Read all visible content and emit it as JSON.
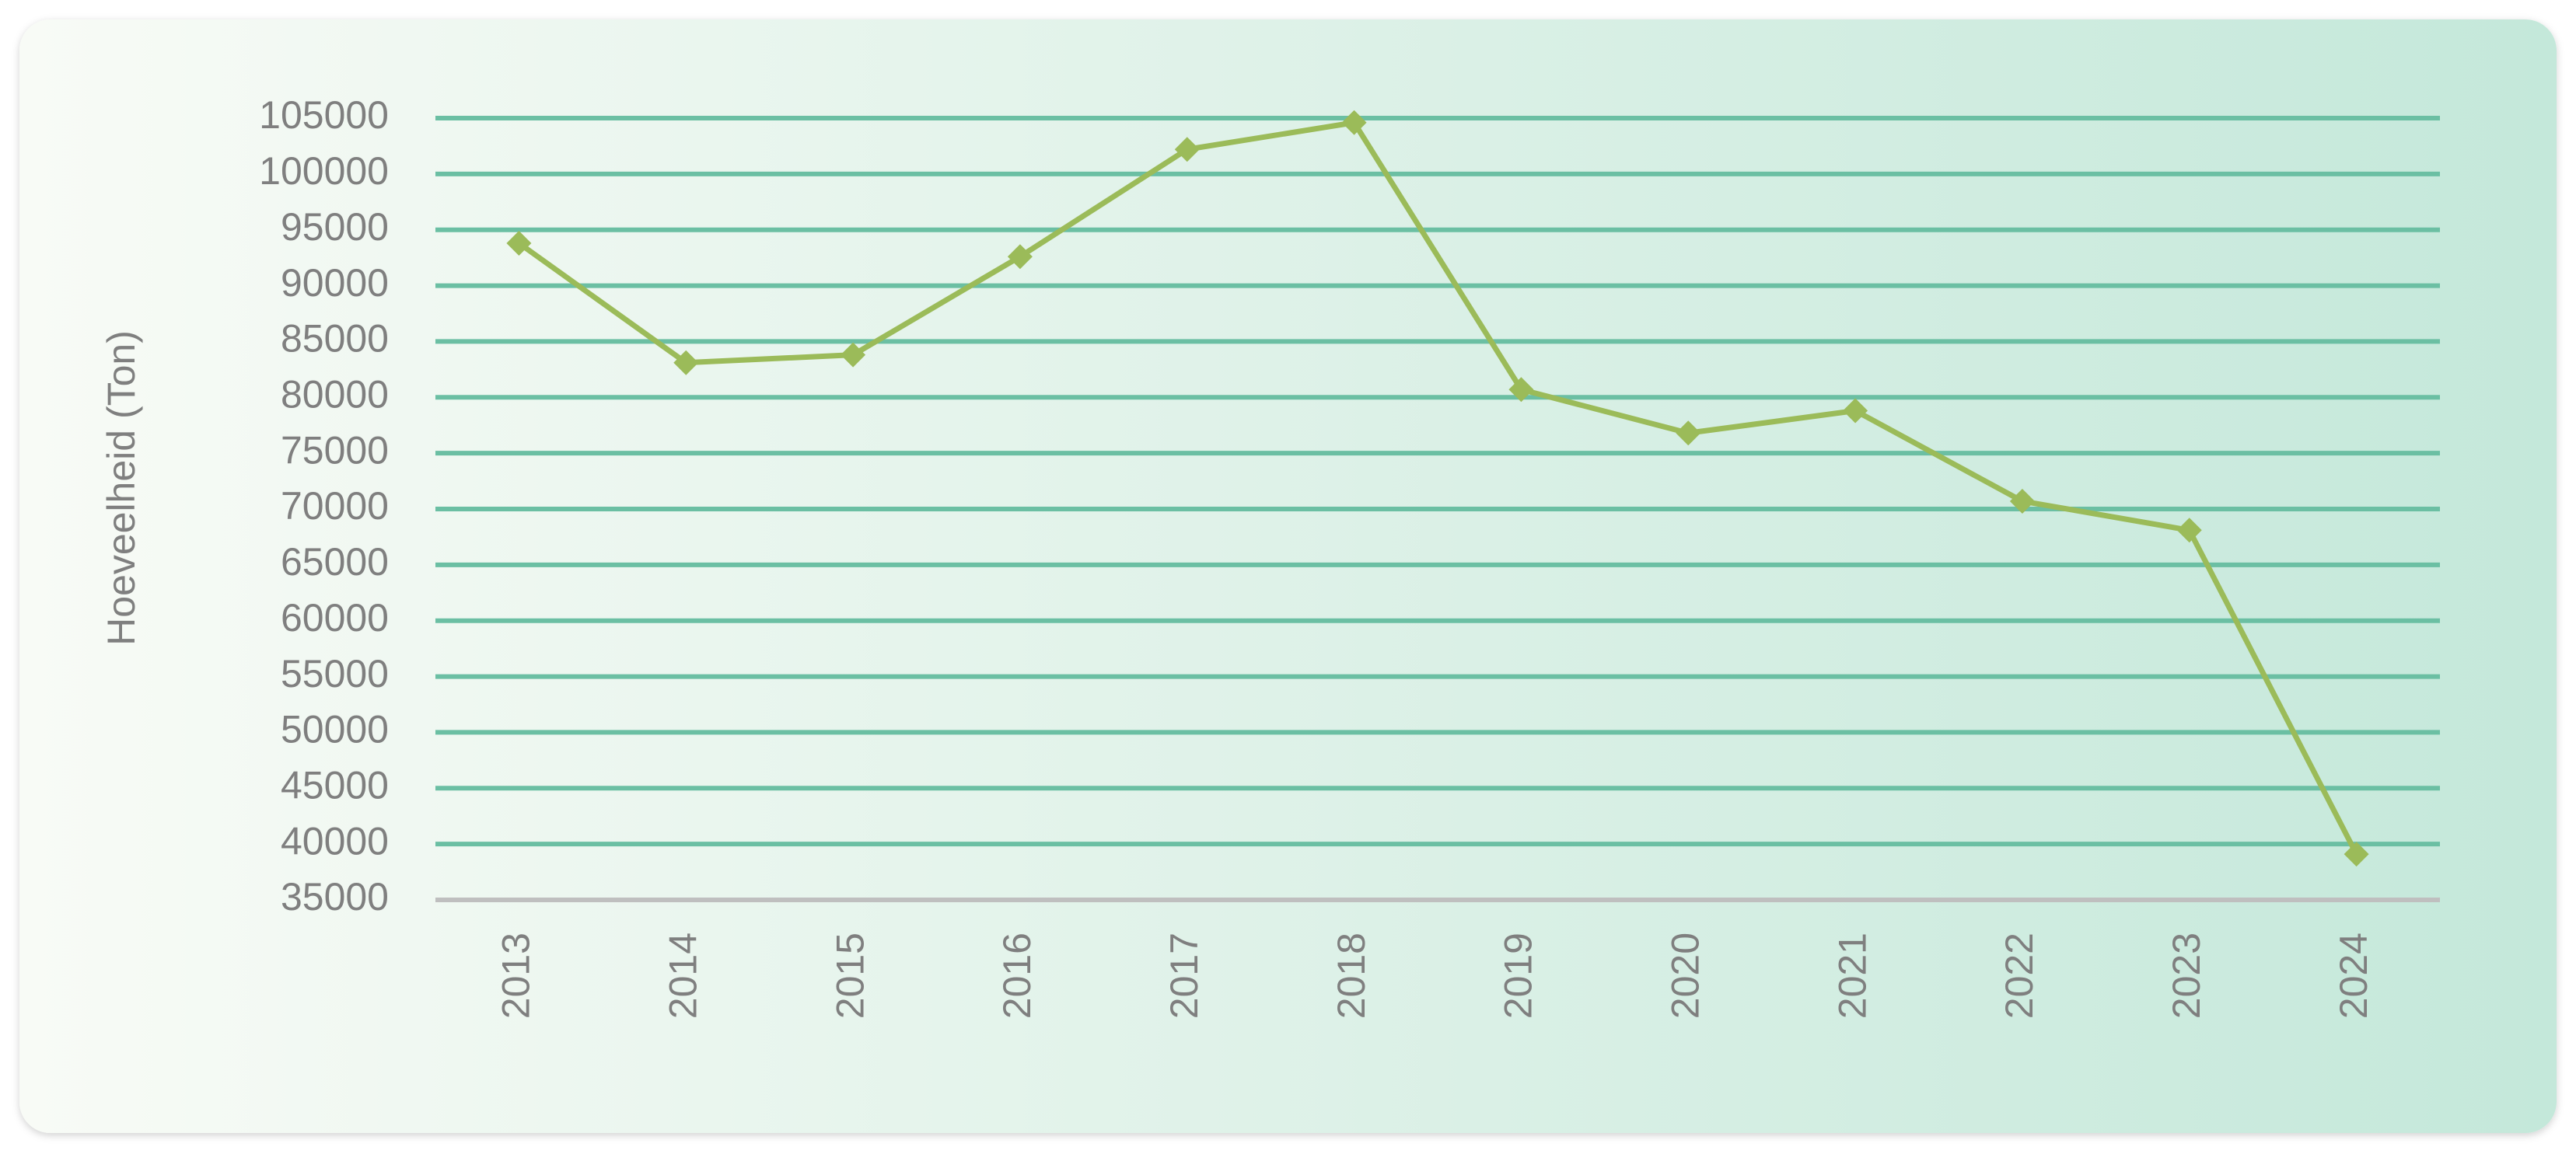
{
  "chart_data": {
    "type": "line",
    "y_axis_label": "Hoeveelheid (Ton)",
    "categories": [
      "2013",
      "2014",
      "2015",
      "2016",
      "2017",
      "2018",
      "2019",
      "2020",
      "2021",
      "2022",
      "2023",
      "2024"
    ],
    "series": [
      {
        "color": "#9bbb59",
        "values": [
          93800,
          83100,
          83800,
          92600,
          102200,
          104600,
          80700,
          76800,
          78800,
          70700,
          68100,
          39100
        ]
      }
    ],
    "ylim": [
      35000,
      105000
    ],
    "yticks": [
      35000,
      40000,
      45000,
      50000,
      55000,
      60000,
      65000,
      70000,
      75000,
      80000,
      85000,
      90000,
      95000,
      100000,
      105000
    ],
    "grid": true,
    "grid_color": "#6bbfa3"
  }
}
